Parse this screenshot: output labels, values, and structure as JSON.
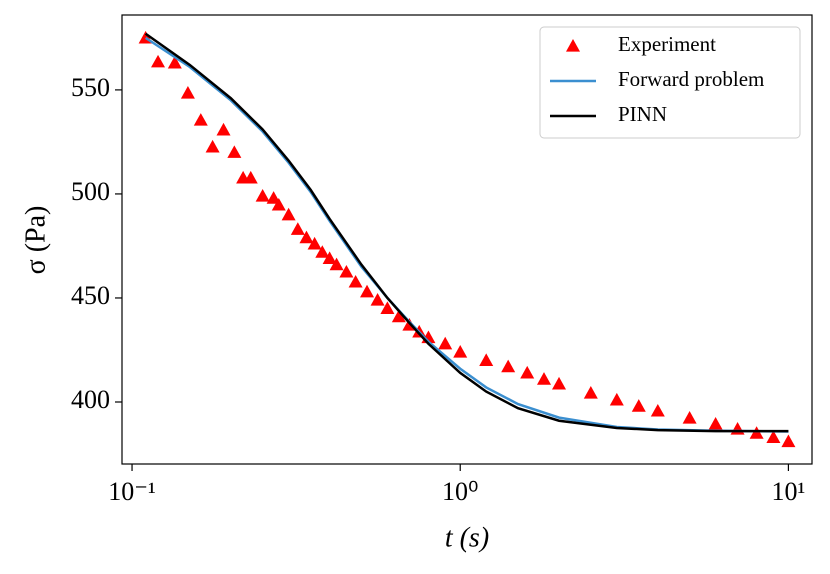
{
  "chart_data": {
    "type": "scatter-line",
    "xlabel": "t (s)",
    "ylabel": "σ (Pa)",
    "xscale": "log",
    "xlim": [
      0.0932,
      11.8
    ],
    "ylim": [
      370.2,
      586
    ],
    "xticks": [
      {
        "value": 0.1,
        "label": "10⁻¹"
      },
      {
        "value": 1,
        "label": "10⁰"
      },
      {
        "value": 10,
        "label": "10¹"
      }
    ],
    "yticks": [
      400,
      450,
      500,
      550
    ],
    "legend": "upper right",
    "series": [
      {
        "name": "Experiment",
        "color": "#ff0000",
        "kind": "markers",
        "x": [
          0.11,
          0.12,
          0.135,
          0.148,
          0.162,
          0.176,
          0.19,
          0.205,
          0.218,
          0.23,
          0.25,
          0.27,
          0.28,
          0.3,
          0.32,
          0.34,
          0.36,
          0.38,
          0.4,
          0.42,
          0.45,
          0.48,
          0.52,
          0.56,
          0.6,
          0.65,
          0.7,
          0.75,
          0.8,
          0.9,
          1.0,
          1.2,
          1.4,
          1.6,
          1.8,
          2.0,
          2.5,
          3.0,
          3.5,
          4.0,
          5.0,
          6.0,
          7.0,
          8.0,
          9.0,
          10.0
        ],
        "values": [
          575,
          563.5,
          563,
          548.5,
          535.5,
          522.6,
          530.8,
          520,
          507.7,
          507.7,
          499,
          498,
          494.7,
          490,
          483,
          479,
          476,
          472,
          469,
          466,
          462.5,
          457.7,
          453,
          449,
          445,
          441,
          437,
          433.7,
          431,
          428,
          424,
          420,
          417,
          414,
          411,
          408.7,
          404.3,
          401,
          398,
          395.7,
          392.3,
          389.4,
          387,
          385,
          383,
          381
        ]
      },
      {
        "name": "Forward problem",
        "color": "#3b8fd0",
        "kind": "line",
        "x": [
          0.11,
          0.15,
          0.2,
          0.25,
          0.3,
          0.35,
          0.4,
          0.5,
          0.6,
          0.7,
          0.8,
          1.0,
          1.2,
          1.5,
          2,
          3,
          4,
          6,
          10
        ],
        "values": [
          575,
          561,
          545,
          530,
          515,
          501,
          487,
          465,
          450,
          438.5,
          429,
          416,
          407,
          399,
          392.5,
          388,
          386.8,
          386.2,
          385.8
        ]
      },
      {
        "name": "PINN",
        "color": "#000000",
        "kind": "line",
        "x": [
          0.11,
          0.15,
          0.2,
          0.25,
          0.3,
          0.35,
          0.4,
          0.5,
          0.6,
          0.7,
          0.8,
          1.0,
          1.2,
          1.5,
          2,
          3,
          4,
          6,
          10
        ],
        "values": [
          577,
          562,
          546,
          531,
          516,
          502,
          488,
          466,
          450,
          438,
          428,
          414,
          405,
          397,
          391,
          387.5,
          386.5,
          386,
          386
        ]
      }
    ]
  }
}
